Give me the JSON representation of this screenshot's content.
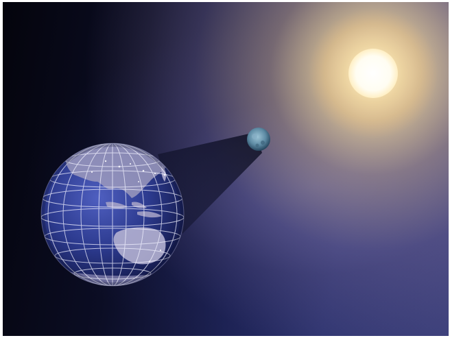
{
  "scene": {
    "subjects": [
      "sun-icon",
      "moon-icon",
      "earth-icon",
      "umbra-shadow"
    ],
    "colors": {
      "space_dark": "#05060f",
      "space_blue": "#2e3470",
      "sun_core": "#ffffff",
      "sun_glow": "#ffd98a",
      "earth_ocean": "#2a3d92",
      "earth_land": "#a6a2c2",
      "grid_lines": "#f2f2ff",
      "moon": "#6f9bb4"
    }
  }
}
